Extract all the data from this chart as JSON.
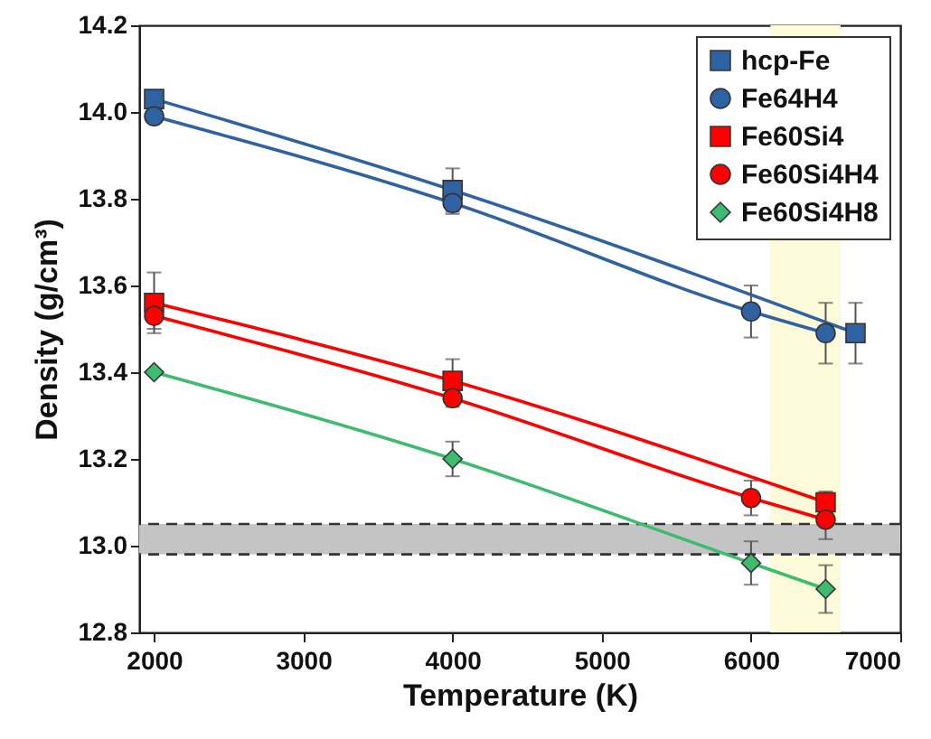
{
  "chart_data": {
    "type": "line",
    "xlabel": "Temperature (K)",
    "ylabel": "Density (g/cm³)",
    "xlim": [
      1900,
      7000
    ],
    "xticks": [
      2000,
      3000,
      4000,
      5000,
      6000,
      7000
    ],
    "ylim": [
      12.8,
      14.2
    ],
    "yticks": [
      {
        "value": 12.8,
        "label": "12.8"
      },
      {
        "value": 13.0,
        "label": "13.0"
      },
      {
        "value": 13.2,
        "label": "13.2"
      },
      {
        "value": 13.4,
        "label": "13.4"
      },
      {
        "value": 13.6,
        "label": "13.6"
      },
      {
        "value": 13.8,
        "label": "13.8"
      },
      {
        "value": 14.0,
        "label": "14.0"
      },
      {
        "value": 14.2,
        "label": "14.2"
      }
    ],
    "legend": "top right",
    "grid": false,
    "series": [
      {
        "name": "hcp-Fe",
        "color": "#2f62a3",
        "marker": "square",
        "x": [
          2000,
          4000,
          6700
        ],
        "values": [
          14.03,
          13.82,
          13.49
        ],
        "errors": [
          null,
          0.05,
          0.07
        ]
      },
      {
        "name": "Fe64H4",
        "color": "#2f62a3",
        "marker": "circle",
        "x": [
          2000,
          4000,
          6000,
          6500
        ],
        "values": [
          13.99,
          13.79,
          13.54,
          13.49
        ],
        "errors": [
          null,
          0.025,
          0.06,
          0.07
        ]
      },
      {
        "name": "Fe60Si4",
        "color": "#ff0000",
        "marker": "square",
        "x": [
          2000,
          4000,
          6500
        ],
        "values": [
          13.56,
          13.38,
          13.1
        ],
        "errors": [
          0.07,
          0.05,
          0.025
        ]
      },
      {
        "name": "Fe60Si4H4",
        "color": "#ff0000",
        "marker": "circle",
        "x": [
          2000,
          4000,
          6000,
          6500
        ],
        "values": [
          13.53,
          13.34,
          13.11,
          13.06
        ],
        "errors": [
          0.03,
          0.02,
          0.04,
          0.045
        ]
      },
      {
        "name": "Fe60Si4H8",
        "color": "#3dbb6e",
        "marker": "diamond",
        "x": [
          2000,
          4000,
          6000,
          6500
        ],
        "values": [
          13.4,
          13.2,
          12.96,
          12.9
        ],
        "errors": [
          null,
          0.04,
          0.05,
          0.055
        ]
      }
    ],
    "bands": [
      {
        "axis": "x",
        "from": 6130,
        "to": 6600,
        "color": "#fdfbd9"
      },
      {
        "axis": "y",
        "from": 12.98,
        "to": 13.05,
        "color": "#c4c4c4"
      }
    ],
    "ref_lines": [
      {
        "axis": "y",
        "value": 12.98,
        "color": "#333333",
        "line_style": "dashed"
      },
      {
        "axis": "y",
        "value": 13.05,
        "color": "#333333",
        "line_style": "dashed"
      }
    ]
  }
}
